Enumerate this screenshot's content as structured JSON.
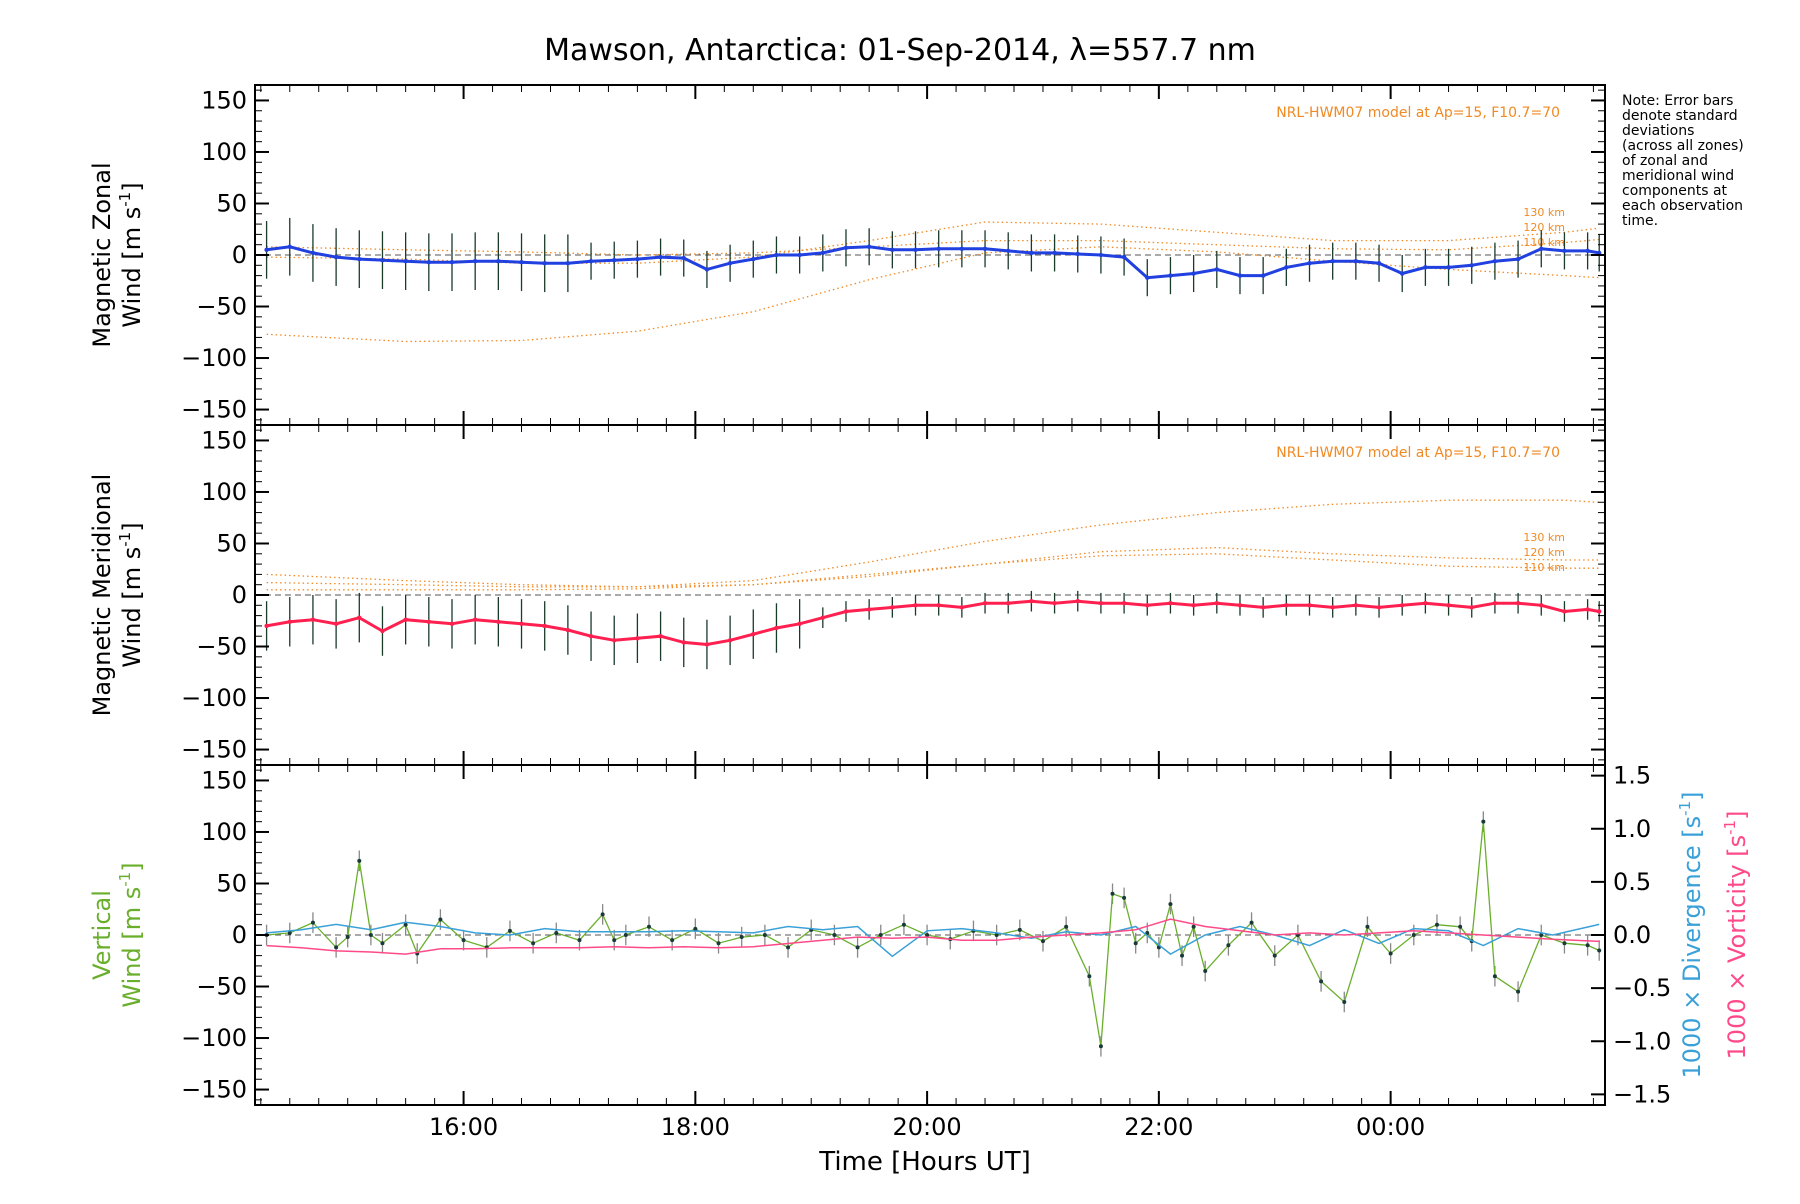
{
  "title": "Mawson, Antarctica: 01-Sep-2014, λ=557.7 nm",
  "note_lines": [
    "Note: Error bars",
    "denote standard",
    "deviations",
    "(across all zones)",
    "of zonal and",
    "meridional wind",
    "components at",
    "each observation",
    "time."
  ],
  "chart_data": [
    {
      "type": "line",
      "panel": "zonal",
      "ylabel_line1": "Magnetic Zonal",
      "ylabel_line2": "Wind [m s",
      "ylabel_sup": "-1",
      "ylabel_close": "]",
      "ylim": [
        -165,
        165
      ],
      "yticks": [
        150,
        100,
        50,
        0,
        -50,
        -100,
        -150
      ],
      "model_note": "NRL-HWM07 model at Ap=15, F10.7=70",
      "model_labels": [
        "130 km",
        "120 km",
        "110 km"
      ],
      "model_curves": [
        {
          "name": "130 km",
          "x": [
            14.3,
            15.5,
            16.5,
            17.5,
            18.5,
            19.5,
            20.5,
            21.5,
            22.5,
            23.5,
            24.5,
            25.5,
            25.8
          ],
          "y": [
            -77,
            -84,
            -83,
            -74,
            -55,
            -24,
            2,
            8,
            3,
            -6,
            -14,
            -20,
            -22
          ]
        },
        {
          "name": "120 km",
          "x": [
            14.3,
            15.5,
            16.5,
            17.5,
            18.5,
            19.5,
            20.5,
            21.5,
            22.5,
            23.5,
            24.5,
            25.5,
            25.8
          ],
          "y": [
            -2,
            -4,
            -8,
            -8,
            -2,
            14,
            32,
            30,
            22,
            14,
            14,
            22,
            26
          ]
        },
        {
          "name": "110 km",
          "x": [
            14.3,
            15.5,
            16.5,
            17.5,
            18.5,
            19.5,
            20.5,
            21.5,
            22.5,
            23.5,
            24.5,
            25.5,
            25.8
          ],
          "y": [
            8,
            5,
            3,
            0,
            2,
            8,
            14,
            14,
            10,
            6,
            5,
            12,
            15
          ]
        }
      ],
      "series": [
        {
          "name": "mean",
          "x": [
            14.3,
            14.5,
            14.7,
            14.9,
            15.1,
            15.3,
            15.5,
            15.7,
            15.9,
            16.1,
            16.3,
            16.5,
            16.7,
            16.9,
            17.1,
            17.3,
            17.5,
            17.7,
            17.9,
            18.1,
            18.3,
            18.5,
            18.7,
            18.9,
            19.1,
            19.3,
            19.5,
            19.7,
            19.9,
            20.1,
            20.3,
            20.5,
            20.7,
            20.9,
            21.1,
            21.3,
            21.5,
            21.7,
            21.9,
            22.1,
            22.3,
            22.5,
            22.7,
            22.9,
            23.1,
            23.3,
            23.5,
            23.7,
            23.9,
            24.1,
            24.3,
            24.5,
            24.7,
            24.9,
            25.1,
            25.3,
            25.5,
            25.7,
            25.8
          ],
          "y": [
            5,
            8,
            2,
            -2,
            -4,
            -5,
            -6,
            -7,
            -7,
            -6,
            -6,
            -7,
            -8,
            -8,
            -6,
            -5,
            -4,
            -2,
            -3,
            -14,
            -8,
            -4,
            0,
            0,
            2,
            7,
            8,
            5,
            5,
            6,
            6,
            6,
            4,
            2,
            2,
            1,
            0,
            -2,
            -22,
            -20,
            -18,
            -14,
            -20,
            -20,
            -12,
            -8,
            -6,
            -6,
            -8,
            -18,
            -12,
            -12,
            -10,
            -6,
            -4,
            6,
            4,
            4,
            2
          ]
        }
      ]
    },
    {
      "type": "line",
      "panel": "meridional",
      "ylabel_line1": "Magnetic Meridional",
      "ylabel_line2": "Wind [m s",
      "ylabel_sup": "-1",
      "ylabel_close": "]",
      "ylim": [
        -165,
        165
      ],
      "yticks": [
        150,
        100,
        50,
        0,
        -50,
        -100,
        -150
      ],
      "model_note": "NRL-HWM07 model at Ap=15, F10.7=70",
      "model_labels": [
        "130 km",
        "120 km",
        "110 km"
      ],
      "model_curves": [
        {
          "name": "130 km",
          "x": [
            14.3,
            15.5,
            16.5,
            17.5,
            18.5,
            19.5,
            20.5,
            21.5,
            22.5,
            23.5,
            24.5,
            25.5,
            25.8
          ],
          "y": [
            20,
            14,
            10,
            8,
            14,
            32,
            52,
            68,
            80,
            88,
            92,
            92,
            90
          ]
        },
        {
          "name": "120 km",
          "x": [
            14.3,
            15.5,
            16.5,
            17.5,
            18.5,
            19.5,
            20.5,
            21.5,
            22.5,
            23.5,
            24.5,
            25.5,
            25.8
          ],
          "y": [
            12,
            10,
            8,
            8,
            10,
            18,
            30,
            42,
            46,
            40,
            36,
            34,
            34
          ]
        },
        {
          "name": "110 km",
          "x": [
            14.3,
            15.5,
            16.5,
            17.5,
            18.5,
            19.5,
            20.5,
            21.5,
            22.5,
            23.5,
            24.5,
            25.5,
            25.8
          ],
          "y": [
            5,
            5,
            5,
            6,
            10,
            20,
            30,
            38,
            40,
            34,
            28,
            26,
            26
          ]
        }
      ],
      "series": [
        {
          "name": "mean",
          "x": [
            14.3,
            14.5,
            14.7,
            14.9,
            15.1,
            15.3,
            15.5,
            15.7,
            15.9,
            16.1,
            16.3,
            16.5,
            16.7,
            16.9,
            17.1,
            17.3,
            17.5,
            17.7,
            17.9,
            18.1,
            18.3,
            18.5,
            18.7,
            18.9,
            19.1,
            19.3,
            19.5,
            19.7,
            19.9,
            20.1,
            20.3,
            20.5,
            20.7,
            20.9,
            21.1,
            21.3,
            21.5,
            21.7,
            21.9,
            22.1,
            22.3,
            22.5,
            22.7,
            22.9,
            23.1,
            23.3,
            23.5,
            23.7,
            23.9,
            24.1,
            24.3,
            24.5,
            24.7,
            24.9,
            25.1,
            25.3,
            25.5,
            25.7,
            25.8
          ],
          "y": [
            -30,
            -26,
            -24,
            -28,
            -22,
            -35,
            -24,
            -26,
            -28,
            -24,
            -26,
            -28,
            -30,
            -34,
            -40,
            -44,
            -42,
            -40,
            -46,
            -48,
            -44,
            -38,
            -32,
            -28,
            -22,
            -16,
            -14,
            -12,
            -10,
            -10,
            -12,
            -8,
            -8,
            -6,
            -8,
            -6,
            -8,
            -8,
            -10,
            -8,
            -10,
            -8,
            -10,
            -12,
            -10,
            -10,
            -12,
            -10,
            -12,
            -10,
            -8,
            -10,
            -12,
            -8,
            -8,
            -10,
            -16,
            -14,
            -16
          ]
        }
      ]
    },
    {
      "type": "line",
      "panel": "vertical",
      "ylabel_line1": "Vertical",
      "ylabel_line2": "Wind [m s",
      "ylabel_sup": "-1",
      "ylabel_close": "]",
      "ylim": [
        -165,
        165
      ],
      "yticks": [
        150,
        100,
        50,
        0,
        -50,
        -100,
        -150
      ],
      "right_axis": {
        "label1": "1000 × Divergence [s",
        "label2": "1000 × Vorticity [s",
        "sup": "-1",
        "close": "]",
        "ylim": [
          -1.6,
          1.6
        ],
        "yticks": [
          1.5,
          1.0,
          0.5,
          0.0,
          -0.5,
          -1.0,
          -1.5
        ],
        "tick_labels": [
          "1.5",
          "1.0",
          "0.5",
          "0.0",
          "−0.5",
          "−1.0",
          "−1.5"
        ]
      },
      "series": [
        {
          "name": "vertical",
          "x": [
            14.3,
            14.5,
            14.7,
            14.9,
            15.0,
            15.1,
            15.2,
            15.3,
            15.5,
            15.6,
            15.8,
            16.0,
            16.2,
            16.4,
            16.6,
            16.8,
            17.0,
            17.2,
            17.3,
            17.4,
            17.6,
            17.8,
            18.0,
            18.2,
            18.4,
            18.6,
            18.8,
            19.0,
            19.2,
            19.4,
            19.6,
            19.8,
            20.0,
            20.2,
            20.4,
            20.6,
            20.8,
            21.0,
            21.2,
            21.4,
            21.5,
            21.6,
            21.7,
            21.8,
            21.9,
            22.0,
            22.1,
            22.2,
            22.3,
            22.4,
            22.6,
            22.8,
            23.0,
            23.2,
            23.4,
            23.6,
            23.8,
            24.0,
            24.2,
            24.4,
            24.6,
            24.7,
            24.8,
            24.9,
            25.1,
            25.3,
            25.5,
            25.7,
            25.8
          ],
          "y": [
            0,
            2,
            12,
            -12,
            -2,
            72,
            0,
            -8,
            10,
            -18,
            15,
            -5,
            -12,
            4,
            -8,
            2,
            -5,
            20,
            -5,
            0,
            8,
            -5,
            6,
            -8,
            -2,
            0,
            -12,
            5,
            0,
            -12,
            0,
            10,
            0,
            -4,
            4,
            0,
            5,
            -6,
            8,
            -40,
            -108,
            40,
            36,
            -8,
            2,
            -12,
            30,
            -20,
            8,
            -35,
            -10,
            12,
            -20,
            0,
            -45,
            -65,
            8,
            -18,
            0,
            10,
            8,
            -6,
            110,
            -40,
            -55,
            0,
            -8,
            -10,
            -15
          ]
        },
        {
          "name": "divergence",
          "x": [
            14.3,
            14.6,
            14.9,
            15.2,
            15.5,
            15.8,
            16.1,
            16.4,
            16.7,
            17.0,
            17.3,
            17.6,
            17.9,
            18.2,
            18.5,
            18.8,
            19.1,
            19.4,
            19.7,
            20.0,
            20.3,
            20.6,
            20.9,
            21.2,
            21.5,
            21.8,
            22.1,
            22.4,
            22.7,
            23.0,
            23.3,
            23.6,
            23.9,
            24.2,
            24.5,
            24.8,
            25.1,
            25.4,
            25.8
          ],
          "y": [
            0.02,
            0.05,
            0.1,
            0.05,
            0.12,
            0.08,
            0.02,
            0.0,
            0.06,
            0.03,
            0.03,
            0.03,
            0.04,
            0.03,
            0.02,
            0.08,
            0.05,
            0.08,
            -0.2,
            0.04,
            0.06,
            0.02,
            -0.03,
            0.03,
            0.0,
            0.08,
            -0.18,
            0.0,
            0.08,
            0.0,
            -0.1,
            0.05,
            -0.08,
            0.06,
            0.04,
            -0.1,
            0.06,
            0.0,
            0.1
          ]
        },
        {
          "name": "vorticity",
          "x": [
            14.3,
            14.6,
            14.9,
            15.2,
            15.5,
            15.8,
            16.1,
            16.4,
            16.7,
            17.0,
            17.3,
            17.6,
            17.9,
            18.2,
            18.5,
            18.8,
            19.1,
            19.4,
            19.7,
            20.0,
            20.3,
            20.6,
            20.9,
            21.2,
            21.5,
            21.8,
            22.1,
            22.4,
            22.7,
            23.0,
            23.3,
            23.6,
            23.9,
            24.2,
            24.5,
            24.8,
            25.1,
            25.4,
            25.8
          ],
          "y": [
            -0.1,
            -0.12,
            -0.15,
            -0.16,
            -0.18,
            -0.13,
            -0.13,
            -0.12,
            -0.12,
            -0.12,
            -0.11,
            -0.12,
            -0.11,
            -0.12,
            -0.11,
            -0.08,
            -0.05,
            -0.02,
            -0.03,
            -0.02,
            -0.05,
            -0.05,
            -0.02,
            0.0,
            0.02,
            0.05,
            0.15,
            0.08,
            0.04,
            0.0,
            0.02,
            0.0,
            0.02,
            0.04,
            0.02,
            0.0,
            -0.02,
            -0.04,
            -0.06
          ]
        }
      ]
    }
  ],
  "xaxis": {
    "title": "Time [Hours UT]",
    "xlim": [
      14.2,
      25.85
    ],
    "tick_positions": [
      16,
      18,
      20,
      22,
      24
    ],
    "tick_labels": [
      "16:00",
      "18:00",
      "20:00",
      "22:00",
      "00:00"
    ]
  },
  "colors": {
    "zonal_mean": "#2040e0",
    "meridional_mean": "#ff2050",
    "vertical": "#6aaf2c",
    "divergence": "#3aa0d8",
    "vorticity": "#ff4a8a",
    "model": "#f08a24",
    "errorbar": "#1a3a2a"
  }
}
